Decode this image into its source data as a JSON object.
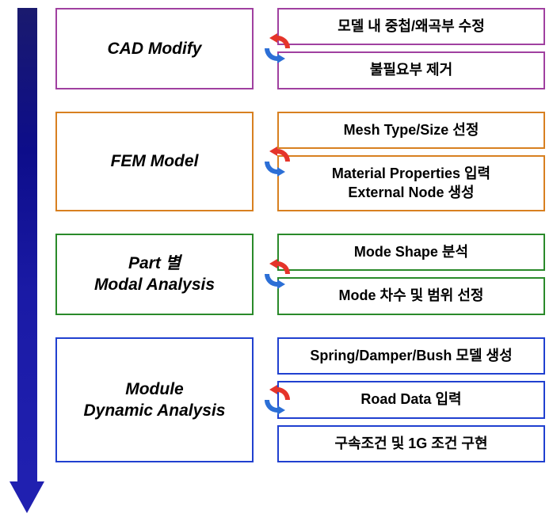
{
  "arrow": {
    "gradient_start": "#1a1a6e",
    "gradient_end": "#2020b0"
  },
  "cycle_icon": {
    "red": "#e5342a",
    "blue": "#2c6fd6"
  },
  "stages": [
    {
      "title": "CAD Modify",
      "border_color": "#a040a0",
      "text_color": "#000000",
      "items": [
        "모델 내 중첩/왜곡부 수정",
        "불필요부 제거"
      ]
    },
    {
      "title": "FEM Model",
      "border_color": "#d88020",
      "text_color": "#000000",
      "items": [
        "Mesh Type/Size 선정",
        "Material Properties 입력\nExternal Node 생성"
      ]
    },
    {
      "title": "Part 별\nModal Analysis",
      "border_color": "#2a8a2a",
      "text_color": "#000000",
      "items": [
        "Mode Shape 분석",
        "Mode 차수 및 범위 선정"
      ]
    },
    {
      "title": "Module\nDynamic Analysis",
      "border_color": "#2040d0",
      "text_color": "#000000",
      "items": [
        "Spring/Damper/Bush 모델 생성",
        "Road Data 입력",
        "구속조건 및 1G 조건 구현"
      ]
    }
  ]
}
